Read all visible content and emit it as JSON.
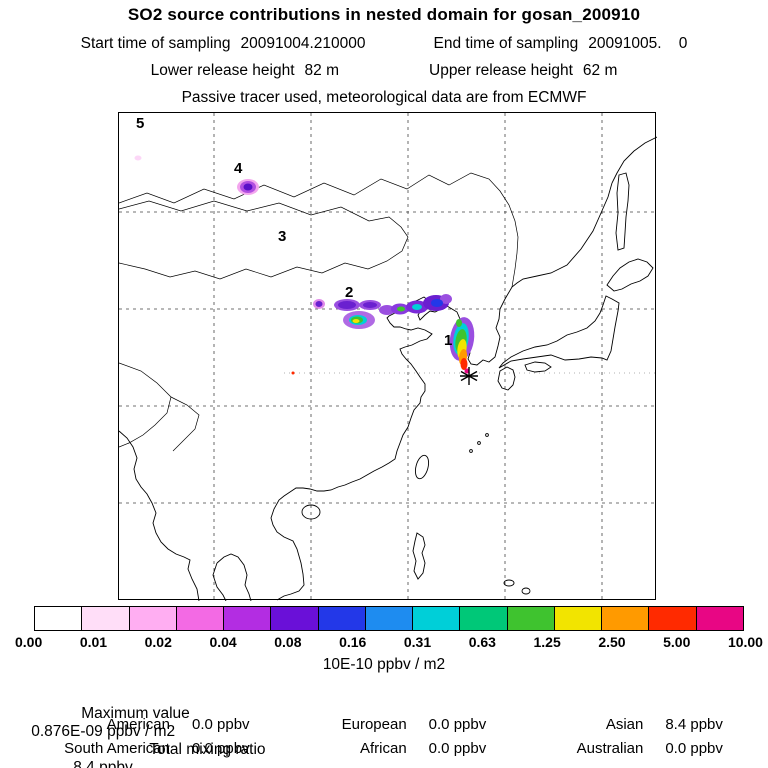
{
  "header": {
    "title": "SO2 source contributions in nested domain for gosan_200910",
    "start_label": "Start time of sampling",
    "start_value": "20091004.210000",
    "end_label": "End time of sampling",
    "end_value": "20091005.    0",
    "lower_label": "Lower release height",
    "lower_value": "82 m",
    "upper_label": "Upper release height",
    "upper_value": "62 m",
    "note": "Passive tracer used, meteorological data are from ECMWF"
  },
  "map": {
    "regions": [
      {
        "label": "1"
      },
      {
        "label": "2"
      },
      {
        "label": "3"
      },
      {
        "label": "4"
      },
      {
        "label": "5"
      }
    ],
    "receptor_marker": "star"
  },
  "colorbar": {
    "tick_labels": [
      "0.00",
      "0.01",
      "0.02",
      "0.04",
      "0.08",
      "0.16",
      "0.31",
      "0.63",
      "1.25",
      "2.50",
      "5.00",
      "10.00"
    ],
    "colors": [
      "#ffffff",
      "#ffdef8",
      "#ffaef2",
      "#f36ae4",
      "#b32de2",
      "#6a10d8",
      "#2338e8",
      "#1e8cf0",
      "#00cfd8",
      "#00c878",
      "#3fc32f",
      "#f2e400",
      "#ff9a00",
      "#ff2a00",
      "#e80684"
    ],
    "units": "10E-10 ppbv / m2"
  },
  "stats": {
    "max_label": "Maximum value",
    "max_value": "0.876E-09 ppbv / m2",
    "total_label": "Total mixing ratio",
    "total_value": "8.4 ppbv",
    "contributions": [
      {
        "label": "American",
        "value": "0.0 ppbv"
      },
      {
        "label": "European",
        "value": "0.0 ppbv"
      },
      {
        "label": "Asian",
        "value": "8.4 ppbv"
      },
      {
        "label": "South American",
        "value": "0.0 ppbv"
      },
      {
        "label": "African",
        "value": "0.0 ppbv"
      },
      {
        "label": "Australian",
        "value": "0.0 ppbv"
      }
    ]
  },
  "chart_data": {
    "type": "heatmap",
    "title": "SO2 source contributions in nested domain for gosan_200910",
    "subtitle_lines": [
      "Start time of sampling 20091004.210000   End time of sampling 20091005.    0",
      "Lower release height 82 m   Upper release height 62 m",
      "Passive tracer used, meteorological data are from ECMWF"
    ],
    "colorbar_boundaries": [
      0.0,
      0.01,
      0.02,
      0.04,
      0.08,
      0.16,
      0.31,
      0.63,
      1.25,
      2.5,
      5.0,
      10.0
    ],
    "colorbar_units": "10E-10 ppbv / m2",
    "numbered_region_markers": [
      "1",
      "2",
      "3",
      "4",
      "5"
    ],
    "receptor": "gosan (star marker)",
    "maximum_value": "0.876E-09 ppbv / m2",
    "total_mixing_ratio_ppbv": 8.4,
    "source_contributions_ppbv": {
      "American": 0.0,
      "European": 0.0,
      "Asian": 8.4,
      "South American": 0.0,
      "African": 0.0,
      "Australian": 0.0
    }
  }
}
